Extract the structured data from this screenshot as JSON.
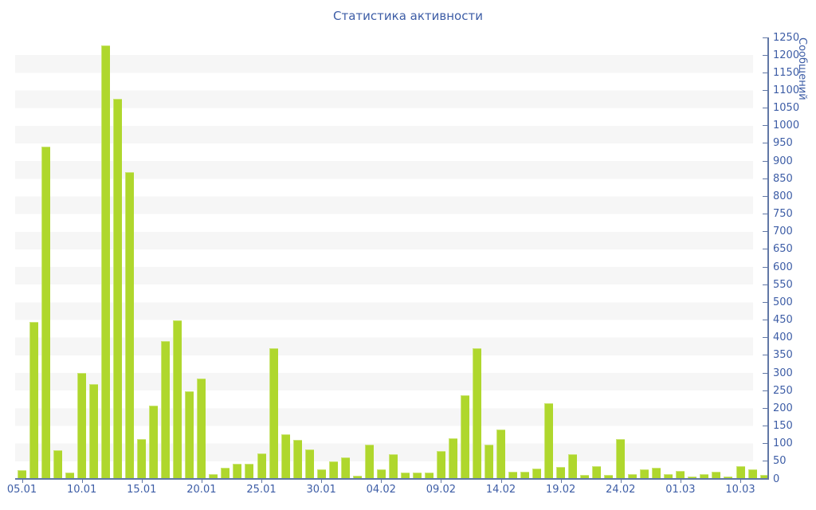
{
  "title": "Статистика активности",
  "y_axis": {
    "title": "Сообщений",
    "min": 0,
    "max": 1250,
    "step": 50
  },
  "x_axis": {
    "tick_labels": [
      "05.01",
      "10.01",
      "15.01",
      "20.01",
      "25.01",
      "30.01",
      "04.02",
      "09.02",
      "14.02",
      "19.02",
      "24.02",
      "01.03",
      "10.03"
    ],
    "tick_every": 5
  },
  "colors": {
    "bar": "#afd72d",
    "text": "#3d5da6",
    "axis": "#6177a6",
    "stripe": "#f6f6f6",
    "background": "#ffffff"
  },
  "chart_data": {
    "type": "bar",
    "title": "Статистика активности",
    "xlabel": "",
    "ylabel": "Сообщений",
    "ylim": [
      0,
      1250
    ],
    "y_tick_step": 50,
    "grid": "horizontal-stripes",
    "legend": "none",
    "axis_position": "right",
    "categories": [
      "05.01",
      "",
      "",
      "",
      "",
      "10.01",
      "",
      "",
      "",
      "",
      "15.01",
      "",
      "",
      "",
      "",
      "20.01",
      "",
      "",
      "",
      "",
      "25.01",
      "",
      "",
      "",
      "",
      "30.01",
      "",
      "",
      "",
      "",
      "04.02",
      "",
      "",
      "",
      "",
      "09.02",
      "",
      "",
      "",
      "",
      "14.02",
      "",
      "",
      "",
      "",
      "19.02",
      "",
      "",
      "",
      "",
      "24.02",
      "",
      "",
      "",
      "",
      "01.03",
      "",
      "",
      "",
      "",
      "10.03",
      "",
      ""
    ],
    "values": [
      24,
      445,
      940,
      82,
      18,
      300,
      268,
      1228,
      1076,
      869,
      112,
      208,
      391,
      449,
      249,
      285,
      13,
      31,
      42,
      42,
      72,
      370,
      127,
      110,
      84,
      27,
      50,
      62,
      10,
      96,
      28,
      70,
      18,
      18,
      18,
      78,
      114,
      236,
      370,
      97,
      140,
      20,
      20,
      30,
      215,
      35,
      70,
      11,
      37,
      11,
      112,
      14,
      26,
      31,
      13,
      22,
      7,
      14,
      20,
      7,
      37,
      28,
      11
    ]
  }
}
